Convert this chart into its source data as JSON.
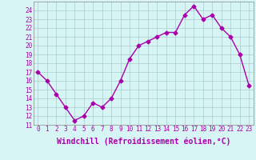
{
  "x": [
    0,
    1,
    2,
    3,
    4,
    5,
    6,
    7,
    8,
    9,
    10,
    11,
    12,
    13,
    14,
    15,
    16,
    17,
    18,
    19,
    20,
    21,
    22,
    23
  ],
  "y": [
    17,
    16,
    14.5,
    13,
    11.5,
    12,
    13.5,
    13,
    14,
    16,
    18.5,
    20,
    20.5,
    21,
    21.5,
    21.5,
    23.5,
    24.5,
    23,
    23.5,
    22,
    21,
    19,
    15.5
  ],
  "line_color": "#aa00aa",
  "marker": "D",
  "marker_size": 2.5,
  "bg_color": "#d8f5f5",
  "grid_color": "#aacccc",
  "xlabel": "Windchill (Refroidissement éolien,°C)",
  "xlabel_fontsize": 7,
  "ylim": [
    11,
    25
  ],
  "yticks": [
    11,
    12,
    13,
    14,
    15,
    16,
    17,
    18,
    19,
    20,
    21,
    22,
    23,
    24
  ],
  "xticks": [
    0,
    1,
    2,
    3,
    4,
    5,
    6,
    7,
    8,
    9,
    10,
    11,
    12,
    13,
    14,
    15,
    16,
    17,
    18,
    19,
    20,
    21,
    22,
    23
  ],
  "tick_fontsize": 5.5,
  "line_width": 1.0
}
